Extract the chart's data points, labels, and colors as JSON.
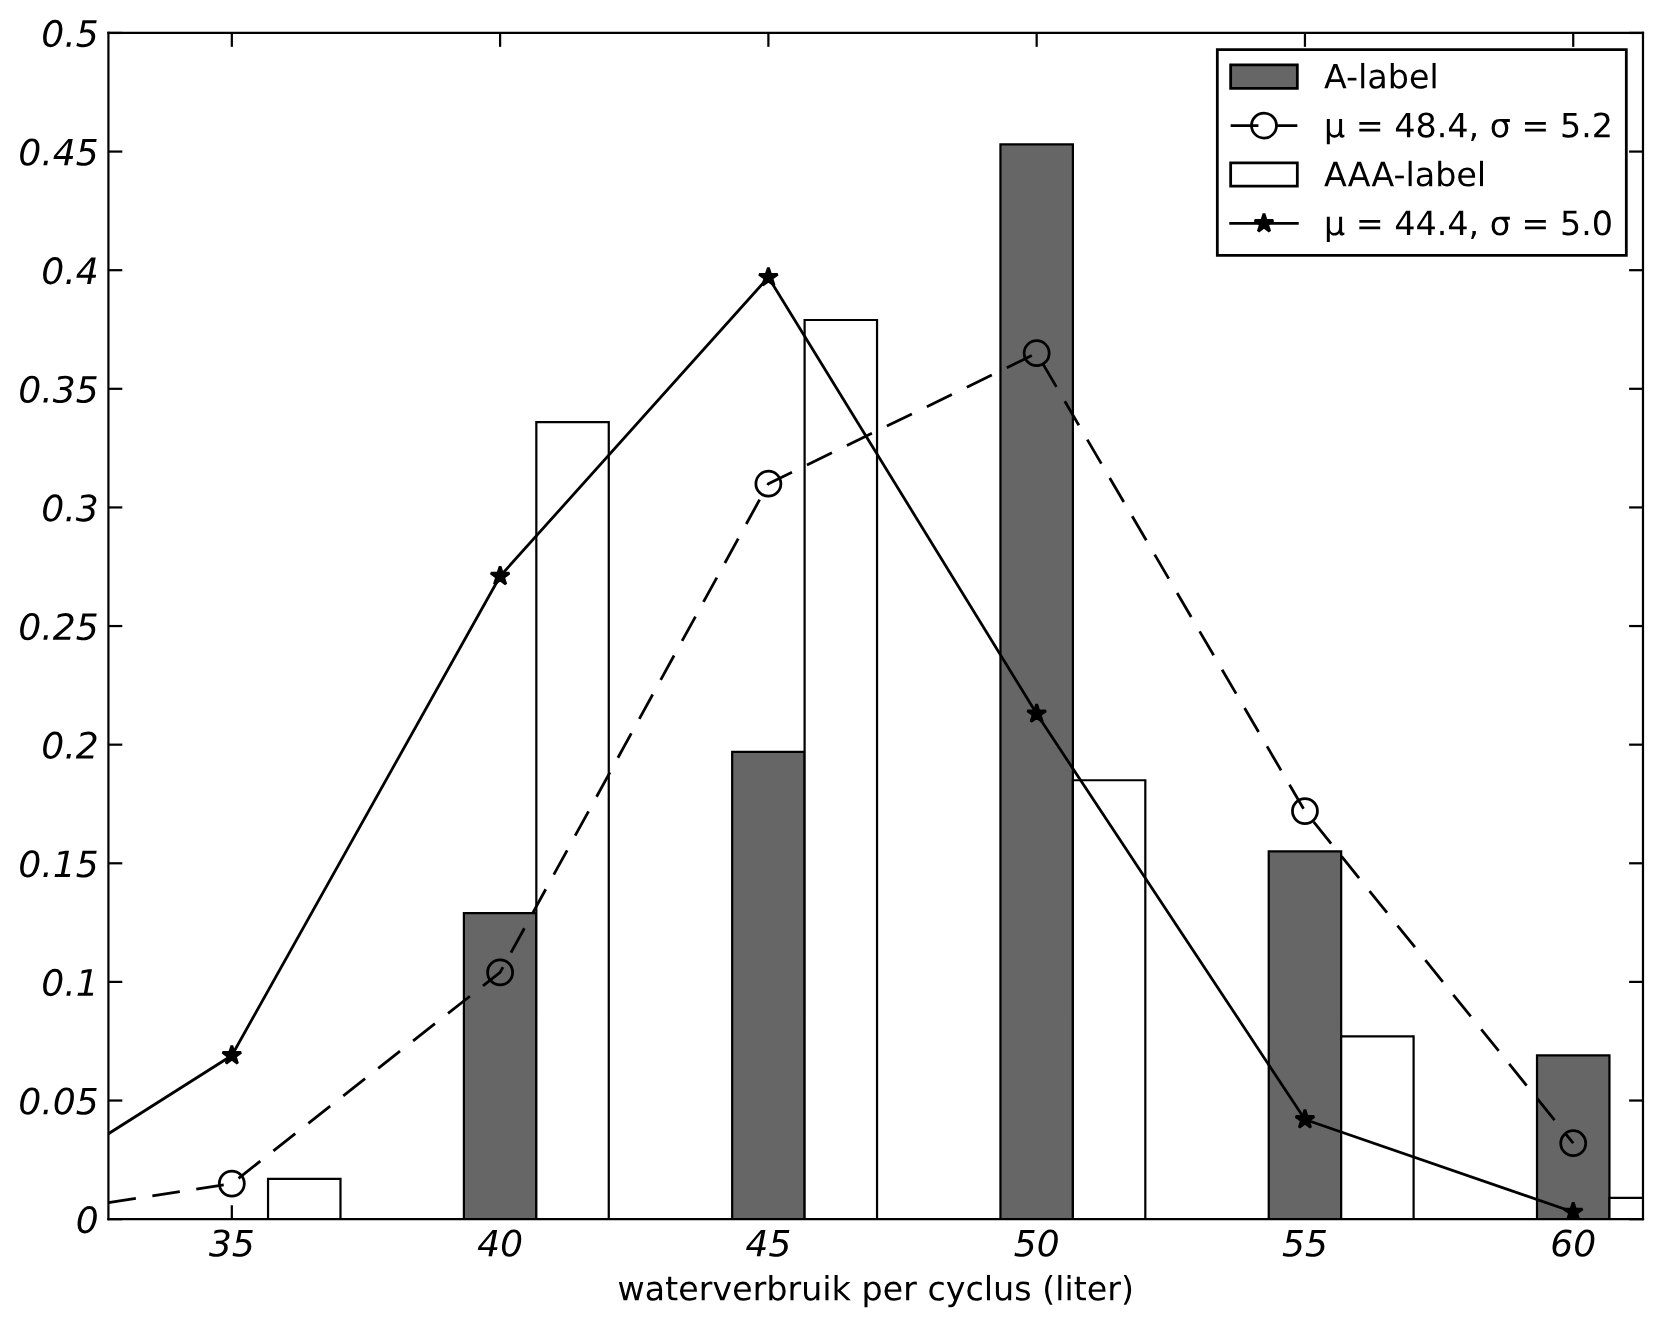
{
  "chart_data": {
    "type": "bar",
    "xlabel": "waterverbruik per cyclus (liter)",
    "x": [
      35,
      40,
      45,
      50,
      55,
      60
    ],
    "series": [
      {
        "name": "A-label",
        "color": "#666666",
        "values": [
          null,
          0.129,
          0.197,
          0.453,
          0.155,
          0.069
        ]
      },
      {
        "name": "μ = 48.4, σ = 5.2",
        "type": "line",
        "color": "#000000",
        "marker": "circle",
        "line_style": "dashed",
        "x": [
          32.7,
          35,
          40,
          45,
          50,
          55,
          60
        ],
        "values": [
          0.007,
          0.015,
          0.104,
          0.31,
          0.365,
          0.172,
          0.032
        ]
      },
      {
        "name": "AAA-label",
        "color": "#ffffff",
        "values": [
          0.017,
          0.336,
          0.379,
          0.185,
          0.077,
          0.009
        ]
      },
      {
        "name": "μ = 44.4, σ = 5.0",
        "type": "line",
        "color": "#000000",
        "marker": "star",
        "line_style": "solid",
        "x": [
          32.7,
          35,
          40,
          45,
          50,
          55,
          60
        ],
        "values": [
          0.036,
          0.069,
          0.271,
          0.397,
          0.213,
          0.042,
          0.003
        ]
      }
    ],
    "xlim": [
      32.7,
      61.3
    ],
    "xticks": [
      35,
      40,
      45,
      50,
      55,
      60
    ],
    "ylim": [
      0,
      0.5
    ],
    "yticks": [
      0,
      0.05,
      0.1,
      0.15,
      0.2,
      0.25,
      0.3,
      0.35,
      0.4,
      0.45,
      0.5
    ],
    "grid": false,
    "legend": "top right"
  }
}
